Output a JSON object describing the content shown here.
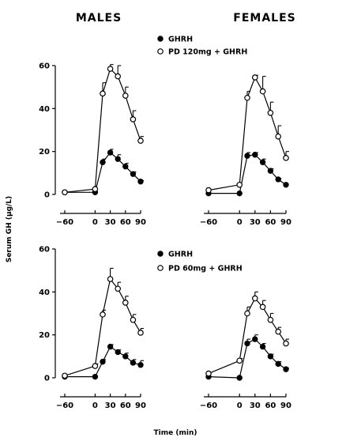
{
  "figure": {
    "col_titles": [
      "MALES",
      "FEMALES"
    ],
    "ylabel": "Serum GH (µg/L)",
    "xlabel": "Time (min)",
    "legend_top": {
      "filled": "GHRH",
      "open": "PD 120mg + GHRH"
    },
    "legend_bottom": {
      "filled": "GHRH",
      "open": "PD 60mg + GHRH"
    },
    "colors": {
      "ink": "#000000",
      "background": "#ffffff"
    }
  },
  "chart_data": [
    {
      "type": "line",
      "panel": "MALES, PD 120mg",
      "xlim": [
        -60,
        90
      ],
      "ylim": [
        0,
        60
      ],
      "xticks": [
        -60,
        0,
        30,
        60,
        90
      ],
      "yticks": [
        0,
        20,
        40,
        60
      ],
      "series": [
        {
          "name": "GHRH",
          "marker": "filled",
          "x": [
            -60,
            0,
            15,
            30,
            45,
            60,
            75,
            90
          ],
          "y": [
            1,
            1,
            15,
            19.5,
            16.5,
            13,
            9.5,
            6
          ],
          "err": [
            0,
            0,
            1.5,
            1.5,
            2,
            1.5,
            1,
            0.5
          ]
        },
        {
          "name": "PD 120mg + GHRH",
          "marker": "open",
          "x": [
            -60,
            0,
            15,
            30,
            45,
            60,
            75,
            90
          ],
          "y": [
            1,
            2.5,
            47,
            58.5,
            55,
            46,
            35,
            25
          ],
          "err": [
            0,
            0,
            5,
            2,
            5,
            4,
            4,
            2
          ]
        }
      ]
    },
    {
      "type": "line",
      "panel": "FEMALES, PD 120mg",
      "xlim": [
        -60,
        90
      ],
      "ylim": [
        0,
        60
      ],
      "xticks": [
        -60,
        0,
        30,
        60,
        90
      ],
      "yticks": [
        0,
        20,
        40,
        60
      ],
      "series": [
        {
          "name": "GHRH",
          "marker": "filled",
          "x": [
            -60,
            0,
            15,
            30,
            45,
            60,
            75,
            90
          ],
          "y": [
            0.5,
            0.5,
            18,
            18.5,
            15,
            11,
            7,
            4.5
          ],
          "err": [
            0,
            0,
            1.5,
            1,
            1.5,
            1,
            0.5,
            0
          ]
        },
        {
          "name": "PD 120mg + GHRH",
          "marker": "open",
          "x": [
            -60,
            0,
            15,
            30,
            45,
            60,
            75,
            90
          ],
          "y": [
            2,
            4.5,
            45,
            54.5,
            48,
            38,
            27,
            17
          ],
          "err": [
            0,
            0,
            3,
            1,
            7,
            5,
            5,
            3
          ]
        }
      ]
    },
    {
      "type": "line",
      "panel": "MALES, PD 60mg",
      "xlim": [
        -60,
        90
      ],
      "ylim": [
        0,
        60
      ],
      "xticks": [
        -60,
        0,
        30,
        60,
        90
      ],
      "yticks": [
        0,
        20,
        40,
        60
      ],
      "series": [
        {
          "name": "GHRH",
          "marker": "filled",
          "x": [
            -60,
            0,
            15,
            30,
            45,
            60,
            75,
            90
          ],
          "y": [
            0.5,
            0.5,
            7.5,
            14.5,
            12,
            10,
            7,
            6
          ],
          "err": [
            0,
            0,
            1,
            1,
            1,
            1.5,
            1.5,
            2
          ]
        },
        {
          "name": "PD 60mg + GHRH",
          "marker": "open",
          "x": [
            -60,
            0,
            15,
            30,
            45,
            60,
            75,
            90
          ],
          "y": [
            1,
            5.5,
            29.5,
            46,
            41.5,
            35,
            27,
            21
          ],
          "err": [
            0,
            1,
            2,
            5,
            3,
            3,
            2.5,
            2
          ]
        }
      ]
    },
    {
      "type": "line",
      "panel": "FEMALES, PD 60mg",
      "xlim": [
        -60,
        90
      ],
      "ylim": [
        0,
        60
      ],
      "xticks": [
        -60,
        0,
        30,
        60,
        90
      ],
      "yticks": [
        0,
        20,
        40,
        60
      ],
      "series": [
        {
          "name": "GHRH",
          "marker": "filled",
          "x": [
            -60,
            0,
            15,
            30,
            45,
            60,
            75,
            90
          ],
          "y": [
            0.5,
            0,
            16,
            18,
            14.5,
            10,
            6.5,
            4
          ],
          "err": [
            0,
            0,
            2,
            2,
            1.5,
            1,
            1,
            0.5
          ]
        },
        {
          "name": "PD 60mg + GHRH",
          "marker": "open",
          "x": [
            -60,
            0,
            15,
            30,
            45,
            60,
            75,
            90
          ],
          "y": [
            2,
            8,
            30,
            37,
            33,
            27,
            21.5,
            16
          ],
          "err": [
            0,
            1,
            3,
            3,
            3,
            3,
            2,
            2
          ]
        }
      ]
    }
  ]
}
